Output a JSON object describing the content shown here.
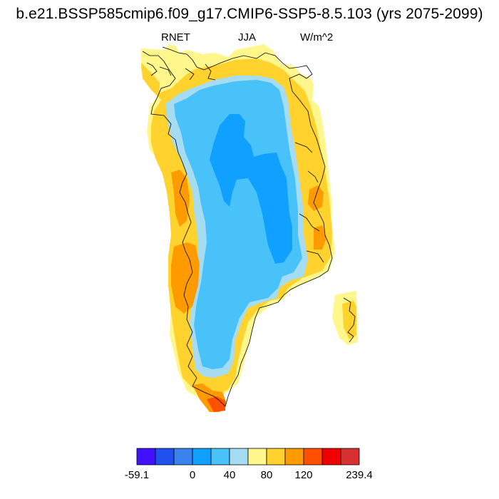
{
  "title": "b.e21.BSSP585cmip6.f09_g17.CMIP6-SSP5-8.5.103 (yrs 2075-2099)",
  "variable": "RNET",
  "season": "JJA",
  "units": "W/m^2",
  "colorbar": {
    "colors": [
      "#4010ff",
      "#2050ee",
      "#3c82ee",
      "#10a0ff",
      "#48c2f8",
      "#a6dcf2",
      "#fff68c",
      "#ffd22e",
      "#ff9a00",
      "#ff5000",
      "#f00000",
      "#d83030"
    ],
    "labels": [
      "-59.1",
      "0",
      "40",
      "80",
      "120",
      "239.4"
    ]
  },
  "palette": {
    "dark_blue": "#10a0ff",
    "blue": "#48c2f8",
    "light_blue": "#a6dcf2",
    "light_yellow": "#fff68c",
    "yellow": "#ffd22e",
    "orange": "#ff9a00",
    "red_orange": "#ff5000"
  }
}
